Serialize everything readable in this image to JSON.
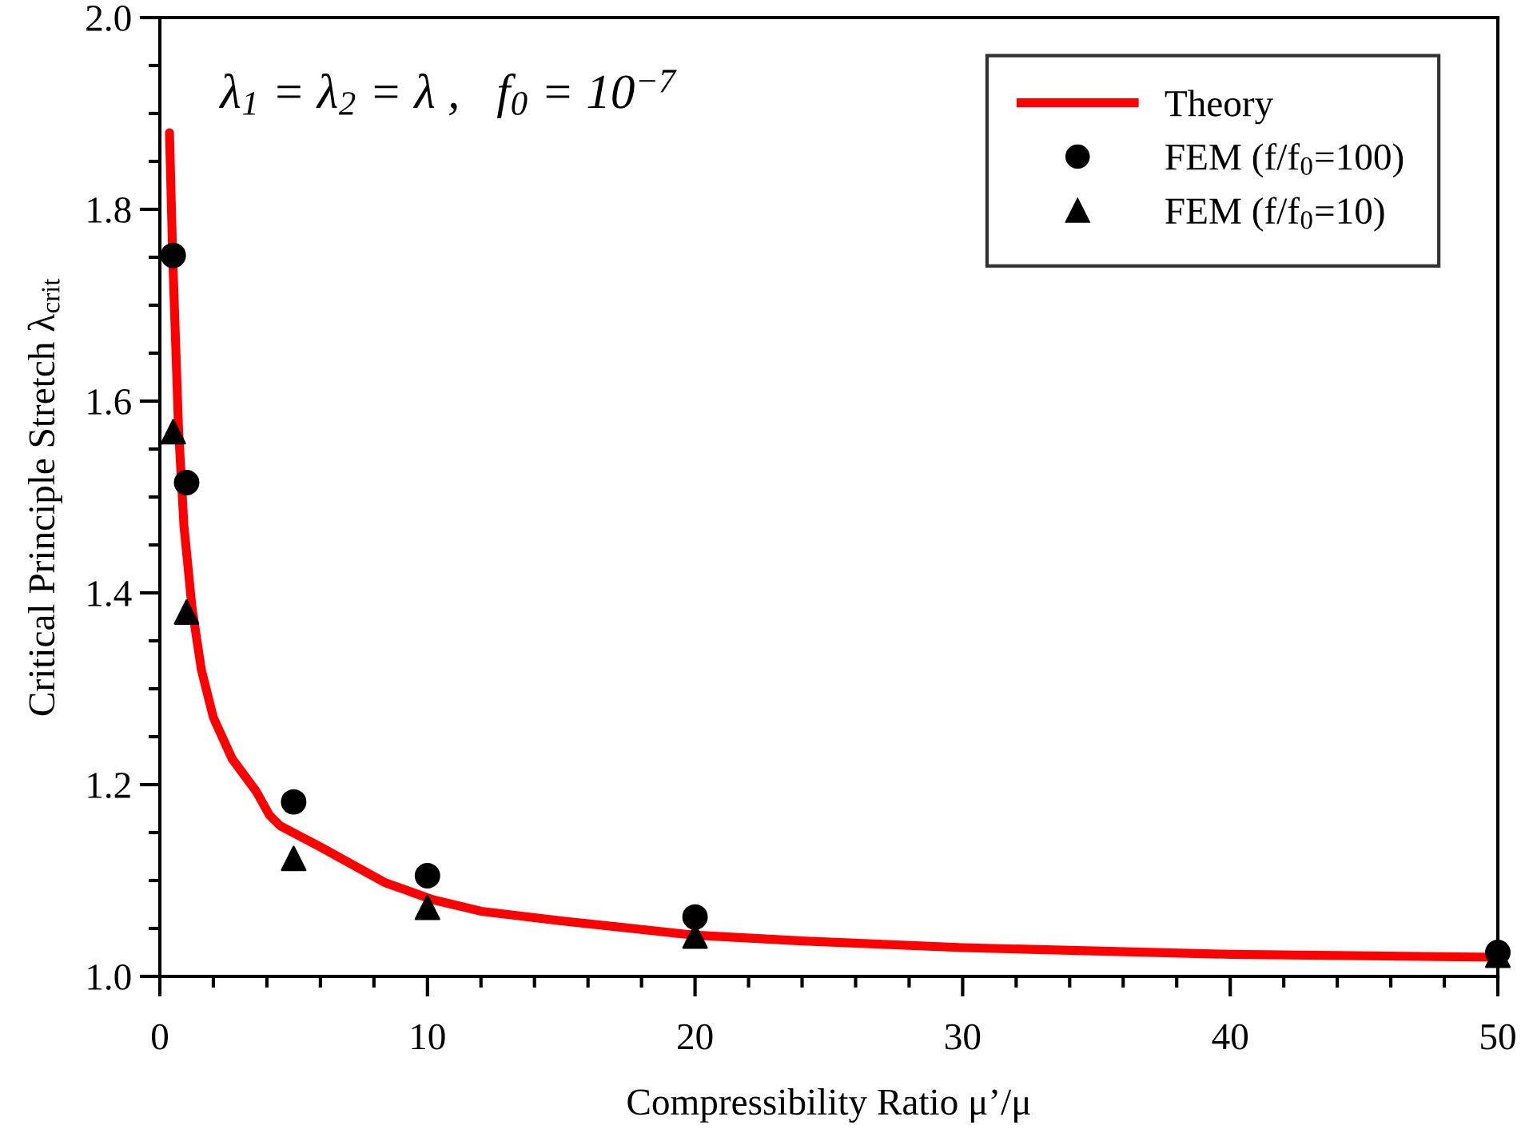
{
  "chart_data": {
    "type": "line",
    "xlabel": "Compressibility Ratio μ’/μ",
    "ylabel": "Critical Principle Stretch λ$_{crit}$",
    "annotations": [
      "λ$_{1}$ = λ$_{2}$ = λ ,   f$_{0}$ = 10$^{−7}$"
    ],
    "series": [
      {
        "name": "Theory",
        "color": "#ff0000",
        "marker": "none",
        "line_style": "solid",
        "x": [
          0.36,
          0.48,
          0.7,
          0.9,
          1.2,
          1.55,
          2.0,
          2.7,
          3.6,
          4.1,
          4.5,
          6,
          8.4,
          10.2,
          12,
          15,
          20,
          24,
          30,
          40,
          50
        ],
        "values": [
          1.88,
          1.75,
          1.57,
          1.47,
          1.385,
          1.32,
          1.27,
          1.227,
          1.193,
          1.168,
          1.157,
          1.135,
          1.098,
          1.08,
          1.068,
          1.058,
          1.043,
          1.037,
          1.03,
          1.023,
          1.02
        ]
      },
      {
        "name": "FEM (f/f$_{0}$=100)",
        "type": "scatter",
        "color": "#000000",
        "marker": "circle",
        "x": [
          0.5,
          1,
          5,
          10,
          20,
          50
        ],
        "values": [
          1.752,
          1.515,
          1.182,
          1.105,
          1.062,
          1.025
        ]
      },
      {
        "name": "FEM (f/f$_{0}$=10)",
        "type": "scatter",
        "color": "#000000",
        "marker": "triangle",
        "x": [
          0.5,
          1,
          5,
          10,
          20,
          50
        ],
        "values": [
          1.568,
          1.38,
          1.123,
          1.072,
          1.042,
          1.022
        ]
      }
    ],
    "xlim": [
      0,
      50
    ],
    "ylim": [
      1.0,
      2.0
    ],
    "xticks": [
      0,
      {
        "value": 2,
        "label": null
      },
      {
        "value": 4,
        "label": null
      },
      {
        "value": 6,
        "label": null
      },
      {
        "value": 8,
        "label": null
      },
      10,
      {
        "value": 12,
        "label": null
      },
      {
        "value": 14,
        "label": null
      },
      {
        "value": 16,
        "label": null
      },
      {
        "value": 18,
        "label": null
      },
      20,
      {
        "value": 22,
        "label": null
      },
      {
        "value": 24,
        "label": null
      },
      {
        "value": 26,
        "label": null
      },
      {
        "value": 28,
        "label": null
      },
      30,
      {
        "value": 32,
        "label": null
      },
      {
        "value": 34,
        "label": null
      },
      {
        "value": 36,
        "label": null
      },
      {
        "value": 38,
        "label": null
      },
      40,
      {
        "value": 42,
        "label": null
      },
      {
        "value": 44,
        "label": null
      },
      {
        "value": 46,
        "label": null
      },
      {
        "value": 48,
        "label": null
      },
      50
    ],
    "yticks": [
      {
        "value": 1.0,
        "label": "1.0"
      },
      {
        "value": 1.05,
        "label": null
      },
      {
        "value": 1.1,
        "label": null
      },
      {
        "value": 1.15,
        "label": null
      },
      1.2,
      {
        "value": 1.25,
        "label": null
      },
      {
        "value": 1.3,
        "label": null
      },
      {
        "value": 1.35,
        "label": null
      },
      1.4,
      {
        "value": 1.45,
        "label": null
      },
      {
        "value": 1.5,
        "label": null
      },
      {
        "value": 1.55,
        "label": null
      },
      1.6,
      {
        "value": 1.65,
        "label": null
      },
      {
        "value": 1.7,
        "label": null
      },
      {
        "value": 1.75,
        "label": null
      },
      1.8,
      {
        "value": 1.85,
        "label": null
      },
      {
        "value": 1.9,
        "label": null
      },
      {
        "value": 1.95,
        "label": null
      },
      {
        "value": 2.0,
        "label": "2.0"
      }
    ],
    "grid": false,
    "legend": "top right"
  }
}
